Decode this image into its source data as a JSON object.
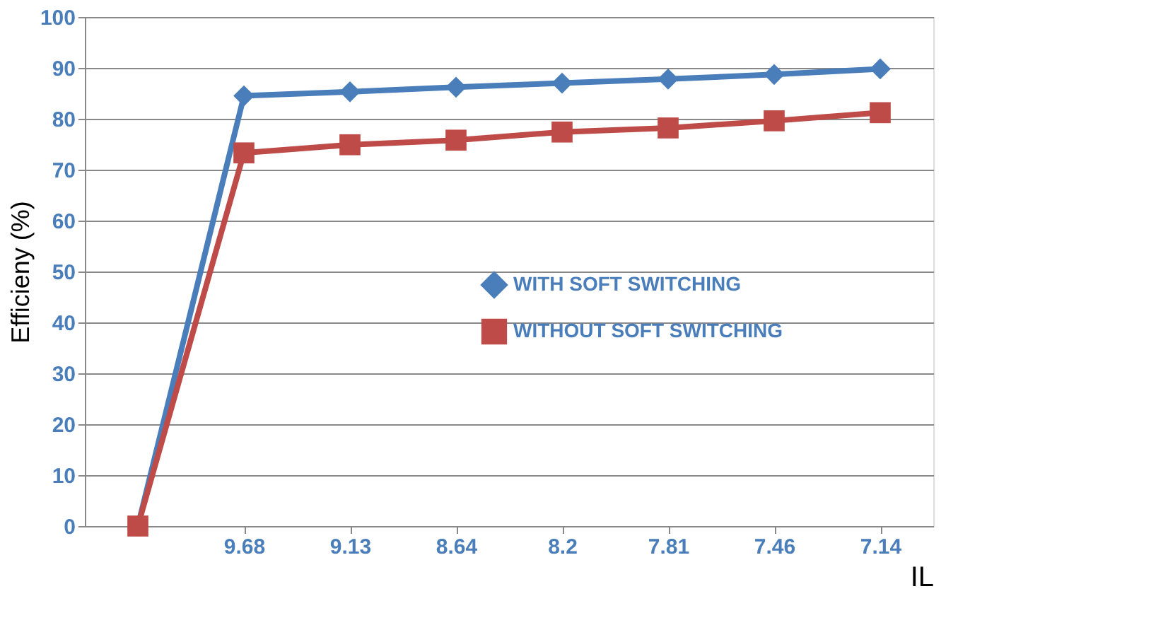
{
  "chart_data": {
    "type": "line",
    "xlabel": "IL",
    "ylabel": "Efficieny (%)",
    "categories": [
      null,
      "9.68",
      "9.13",
      "8.64",
      "8.2",
      "7.81",
      "7.46",
      "7.14"
    ],
    "series": [
      {
        "name": "WITH SOFT SWITCHING",
        "color": "#4a7ebb",
        "marker": "diamond",
        "values": [
          0,
          84.5,
          85.3,
          86.2,
          87,
          87.8,
          88.7,
          89.8
        ]
      },
      {
        "name": "WITHOUT SOFT SWITCHING",
        "color": "#be4b48",
        "marker": "square",
        "values": [
          0,
          73.3,
          74.9,
          75.8,
          77.4,
          78.2,
          79.6,
          81.2
        ]
      }
    ],
    "ylim": [
      0,
      100
    ],
    "yticks": [
      0,
      10,
      20,
      30,
      40,
      50,
      60,
      70,
      80,
      90,
      100
    ],
    "grid": "y",
    "legend": "right",
    "line_style": "solid"
  }
}
